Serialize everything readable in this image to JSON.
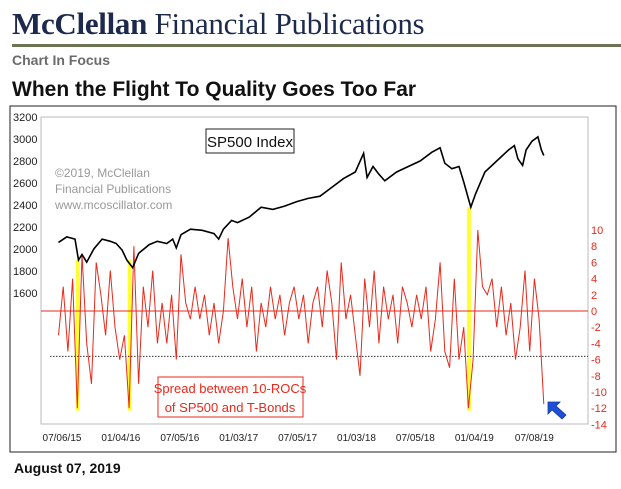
{
  "header": {
    "brand_bold": "McClellan",
    "brand_rest": " Financial Publications",
    "section": "Chart In Focus",
    "headline": "When the Flight To Quality Goes Too Far"
  },
  "footer": {
    "date": "August 07, 2019"
  },
  "chart_data": {
    "type": "line",
    "title": "SP500 Index",
    "watermark": [
      "©2019, McClellan",
      "Financial Publications",
      "www.mcoscillator.com"
    ],
    "annotation": [
      "Spread between 10-ROCs",
      "of SP500 and T-Bonds"
    ],
    "x_ticks": [
      "07/06/15",
      "01/04/16",
      "07/05/16",
      "01/03/17",
      "07/05/17",
      "01/03/18",
      "07/05/18",
      "01/04/19",
      "07/08/19"
    ],
    "x_tick_years": [
      2015.51,
      2016.01,
      2016.51,
      2017.01,
      2017.51,
      2018.01,
      2018.51,
      2019.01,
      2019.52
    ],
    "left_axis": {
      "ylim": [
        1400,
        3200
      ],
      "ticks": [
        "3200",
        "3000",
        "2800",
        "2600",
        "2400",
        "2200",
        "2000",
        "1800",
        "1600"
      ]
    },
    "right_axis": {
      "ylim": [
        -14,
        10
      ],
      "ticks": [
        "10",
        "8",
        "6",
        "4",
        "2",
        "0",
        "-2",
        "-4",
        "-6",
        "-8",
        "-10",
        "-12",
        "-14"
      ]
    },
    "reference_lines": {
      "zero": 0,
      "dotted": -5.6
    },
    "highlights_years": [
      2015.64,
      2016.08,
      2018.96
    ],
    "colors": {
      "sp500": "#000000",
      "spread": "#e8291c",
      "highlight": "#ffff33",
      "arrow": "#1f4fd6",
      "axis_right": "#e8291c"
    },
    "series": [
      {
        "name": "SP500",
        "axis": "left",
        "points": [
          [
            2015.48,
            2060
          ],
          [
            2015.55,
            2110
          ],
          [
            2015.62,
            2090
          ],
          [
            2015.65,
            1900
          ],
          [
            2015.68,
            1950
          ],
          [
            2015.72,
            1880
          ],
          [
            2015.78,
            2000
          ],
          [
            2015.85,
            2090
          ],
          [
            2015.92,
            2070
          ],
          [
            2015.97,
            2050
          ],
          [
            2016.02,
            1990
          ],
          [
            2016.06,
            1900
          ],
          [
            2016.11,
            1830
          ],
          [
            2016.16,
            1960
          ],
          [
            2016.25,
            2040
          ],
          [
            2016.32,
            2070
          ],
          [
            2016.4,
            2050
          ],
          [
            2016.45,
            2090
          ],
          [
            2016.48,
            2010
          ],
          [
            2016.52,
            2130
          ],
          [
            2016.6,
            2180
          ],
          [
            2016.7,
            2170
          ],
          [
            2016.8,
            2140
          ],
          [
            2016.84,
            2090
          ],
          [
            2016.88,
            2180
          ],
          [
            2016.95,
            2260
          ],
          [
            2017.0,
            2240
          ],
          [
            2017.1,
            2290
          ],
          [
            2017.2,
            2380
          ],
          [
            2017.3,
            2360
          ],
          [
            2017.4,
            2390
          ],
          [
            2017.5,
            2430
          ],
          [
            2017.6,
            2460
          ],
          [
            2017.7,
            2480
          ],
          [
            2017.8,
            2560
          ],
          [
            2017.9,
            2640
          ],
          [
            2018.0,
            2700
          ],
          [
            2018.07,
            2870
          ],
          [
            2018.1,
            2650
          ],
          [
            2018.15,
            2750
          ],
          [
            2018.2,
            2680
          ],
          [
            2018.25,
            2620
          ],
          [
            2018.35,
            2700
          ],
          [
            2018.45,
            2750
          ],
          [
            2018.55,
            2800
          ],
          [
            2018.65,
            2880
          ],
          [
            2018.72,
            2920
          ],
          [
            2018.76,
            2780
          ],
          [
            2018.82,
            2730
          ],
          [
            2018.88,
            2750
          ],
          [
            2018.92,
            2610
          ],
          [
            2018.98,
            2380
          ],
          [
            2019.02,
            2500
          ],
          [
            2019.1,
            2700
          ],
          [
            2019.2,
            2800
          ],
          [
            2019.3,
            2900
          ],
          [
            2019.35,
            2940
          ],
          [
            2019.38,
            2820
          ],
          [
            2019.42,
            2760
          ],
          [
            2019.45,
            2900
          ],
          [
            2019.5,
            2980
          ],
          [
            2019.55,
            3020
          ],
          [
            2019.58,
            2900
          ],
          [
            2019.6,
            2850
          ]
        ]
      },
      {
        "name": "Spread between 10-ROCs of SP500 and T-Bonds",
        "axis": "right",
        "start_year": 2015.48,
        "step_years": 0.04,
        "values": [
          -3,
          3,
          -5,
          4,
          -12,
          7,
          -4,
          -9,
          6,
          2,
          -3,
          5,
          -2,
          -6,
          -3,
          -12,
          8,
          -9,
          3,
          -2,
          5,
          -4,
          1,
          -4,
          2,
          -6,
          7,
          1,
          -1,
          3,
          -1,
          2,
          -3,
          1,
          -4,
          0,
          9,
          3,
          -1,
          4,
          -2,
          3,
          -5,
          1,
          -2,
          3,
          -1,
          2,
          -3,
          1,
          3,
          -1,
          2,
          -4,
          1,
          3,
          -2,
          5,
          1,
          -6,
          6,
          -1,
          2,
          -3,
          -8,
          4,
          -2,
          5,
          -4,
          3,
          -1,
          2,
          -4,
          3,
          1,
          -2,
          2,
          -1,
          3,
          -5,
          -1,
          6,
          -5,
          -7,
          4,
          -6,
          -2,
          -12,
          -6,
          10,
          3,
          2,
          4,
          -2,
          3,
          -3,
          1,
          -6,
          -2,
          5,
          -5,
          4,
          -1,
          -11.5
        ]
      }
    ]
  }
}
